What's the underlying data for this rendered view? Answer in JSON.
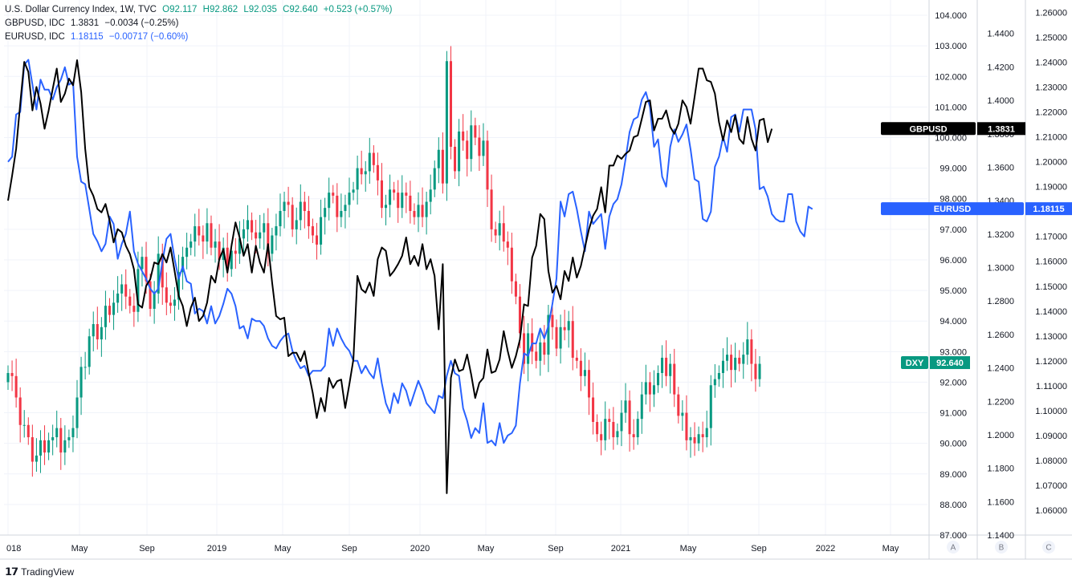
{
  "legend": {
    "dxy": {
      "name": "U.S. Dollar Currency Index, 1W, TVC",
      "o": "O92.117",
      "h": "H92.862",
      "l": "L92.035",
      "c": "C92.640",
      "chg": "+0.523 (+0.57%)"
    },
    "gbp": {
      "name": "GBPUSD, IDC",
      "value": "1.3831",
      "chg": "−0.0034 (−0.25%)"
    },
    "eur": {
      "name": "EURUSD, IDC",
      "value": "1.18115",
      "chg": "−0.00717 (−0.60%)"
    }
  },
  "footer": {
    "brand": "TradingView"
  },
  "colors": {
    "up": "#089981",
    "down": "#f23645",
    "gbp": "#000000",
    "eur": "#2962ff",
    "dxy_tag": "#089981",
    "grid": "#f0f3fa",
    "axis_border": "#d1d4dc"
  },
  "chart_data": {
    "type": "line",
    "x_tick_labels": [
      "018",
      "May",
      "Sep",
      "2019",
      "May",
      "Sep",
      "2020",
      "May",
      "Sep",
      "2021",
      "May",
      "Sep",
      "2022",
      "May"
    ],
    "axis_letters": [
      "A",
      "B",
      "C"
    ],
    "axes": {
      "A": {
        "ylim": [
          87,
          104.5
        ],
        "ticks": [
          87,
          88,
          89,
          90,
          91,
          92,
          93,
          94,
          95,
          96,
          97,
          98,
          99,
          100,
          101,
          102,
          103,
          104
        ],
        "decimals": 3
      },
      "B": {
        "ylim": [
          1.14,
          1.46
        ],
        "ticks": [
          1.14,
          1.16,
          1.18,
          1.2,
          1.22,
          1.24,
          1.26,
          1.28,
          1.3,
          1.32,
          1.34,
          1.36,
          1.38,
          1.4,
          1.42,
          1.44
        ],
        "decimals": 4
      },
      "C": {
        "ylim": [
          1.05,
          1.265
        ],
        "ticks": [
          1.06,
          1.07,
          1.08,
          1.09,
          1.1,
          1.11,
          1.12,
          1.13,
          1.14,
          1.15,
          1.16,
          1.17,
          1.18,
          1.19,
          1.2,
          1.21,
          1.22,
          1.23,
          1.24,
          1.25,
          1.26
        ],
        "decimals": 5
      }
    },
    "series": [
      {
        "name": "DXY",
        "axis": "A",
        "type": "candlestick",
        "close": [
          92.3,
          92.2,
          91.5,
          90.6,
          90.6,
          90.2,
          89.4,
          89.6,
          90.1,
          89.7,
          90.1,
          90.2,
          90.5,
          89.7,
          90.1,
          90.2,
          90.5,
          91.5,
          92.5,
          92.5,
          93.5,
          93.9,
          93.4,
          93.8,
          94.5,
          94.2,
          94.6,
          94.9,
          95.2,
          94.8,
          94.5,
          94.3,
          95.7,
          96.1,
          95.3,
          94.4,
          94.9,
          96.2,
          95.1,
          94.6,
          94.5,
          94.7,
          95.6,
          96.1,
          96.4,
          96.6,
          97.1,
          96.8,
          96.6,
          97.2,
          96.4,
          96.6,
          96.0,
          96.4,
          95.7,
          96.3,
          96.2,
          96.7,
          97.0,
          97.3,
          96.9,
          96.7,
          96.9,
          97.2,
          96.2,
          96.8,
          97.1,
          97.6,
          97.9,
          97.8,
          97.0,
          97.3,
          97.9,
          97.6,
          97.1,
          96.8,
          96.5,
          97.4,
          97.7,
          98.2,
          98.1,
          97.4,
          97.6,
          97.8,
          98.2,
          98.3,
          99.0,
          98.8,
          98.9,
          99.5,
          99.1,
          98.6,
          97.7,
          97.8,
          98.3,
          98.2,
          97.7,
          98.2,
          98.1,
          97.6,
          97.4,
          97.8,
          97.4,
          97.9,
          98.3,
          99.0,
          99.6,
          98.5,
          102.5,
          99.7,
          98.9,
          100.2,
          99.9,
          99.3,
          100.4,
          100.0,
          99.4,
          99.9,
          98.3,
          97.0,
          96.8,
          97.2,
          96.6,
          96.4,
          95.3,
          94.8,
          93.6,
          92.6,
          93.6,
          93.0,
          92.7,
          93.3,
          92.9,
          94.2,
          93.8,
          93.1,
          93.8,
          93.7,
          94.0,
          92.8,
          92.7,
          92.2,
          92.4,
          91.5,
          90.7,
          90.3,
          90.1,
          90.8,
          90.7,
          90.2,
          90.4,
          91.0,
          91.4,
          90.3,
          90.2,
          90.8,
          91.6,
          92.0,
          91.6,
          91.9,
          92.3,
          92.8,
          92.2,
          92.6,
          91.6,
          90.9,
          91.0,
          90.1,
          90.2,
          90.0,
          90.3,
          90.2,
          90.5,
          91.9,
          92.1,
          92.3,
          92.7,
          92.9,
          92.4,
          92.8,
          92.6,
          92.9,
          93.4,
          92.6,
          92.1,
          92.6
        ],
        "open": [
          null
        ]
      },
      {
        "name": "GBPUSD",
        "axis": "B",
        "values": [
          1.34,
          1.355,
          1.371,
          1.398,
          1.423,
          1.417,
          1.394,
          1.408,
          1.398,
          1.383,
          1.394,
          1.407,
          1.419,
          1.399,
          1.404,
          1.413,
          1.409,
          1.424,
          1.405,
          1.371,
          1.348,
          1.343,
          1.335,
          1.333,
          1.338,
          1.328,
          1.315,
          1.323,
          1.321,
          1.313,
          1.308,
          1.299,
          1.278,
          1.276,
          1.289,
          1.293,
          1.303,
          1.302,
          1.308,
          1.303,
          1.312,
          1.298,
          1.283,
          1.277,
          1.265,
          1.276,
          1.282,
          1.268,
          1.271,
          1.279,
          1.295,
          1.291,
          1.305,
          1.311,
          1.297,
          1.313,
          1.327,
          1.318,
          1.307,
          1.314,
          1.297,
          1.313,
          1.303,
          1.297,
          1.314,
          1.291,
          1.271,
          1.269,
          1.27,
          1.247,
          1.249,
          1.249,
          1.244,
          1.25,
          1.237,
          1.225,
          1.21,
          1.222,
          1.214,
          1.234,
          1.228,
          1.232,
          1.233,
          1.216,
          1.23,
          1.245,
          1.295,
          1.287,
          1.285,
          1.291,
          1.283,
          1.305,
          1.312,
          1.31,
          1.295,
          1.298,
          1.302,
          1.307,
          1.318,
          1.302,
          1.307,
          1.301,
          1.314,
          1.299,
          1.305,
          1.295,
          1.263,
          1.302,
          1.165,
          1.234,
          1.245,
          1.238,
          1.239,
          1.248,
          1.236,
          1.222,
          1.231,
          1.234,
          1.251,
          1.237,
          1.238,
          1.245,
          1.262,
          1.25,
          1.24,
          1.247,
          1.257,
          1.278,
          1.277,
          1.306,
          1.313,
          1.332,
          1.329,
          1.298,
          1.285,
          1.289,
          1.281,
          1.298,
          1.292,
          1.306,
          1.294,
          1.301,
          1.312,
          1.323,
          1.331,
          1.335,
          1.348,
          1.333,
          1.361,
          1.361,
          1.367,
          1.365,
          1.368,
          1.37,
          1.378,
          1.379,
          1.389,
          1.399,
          1.4,
          1.382,
          1.389,
          1.389,
          1.394,
          1.384,
          1.38,
          1.386,
          1.4,
          1.396,
          1.386,
          1.402,
          1.419,
          1.419,
          1.412,
          1.411,
          1.404,
          1.387,
          1.376,
          1.388,
          1.381,
          1.391,
          1.377,
          1.374,
          1.39,
          1.377,
          1.37,
          1.388,
          1.389,
          1.375,
          1.383
        ]
      },
      {
        "name": "EURUSD",
        "axis": "C",
        "values": [
          1.2,
          1.202,
          1.219,
          1.22,
          1.239,
          1.241,
          1.231,
          1.221,
          1.233,
          1.229,
          1.229,
          1.225,
          1.23,
          1.233,
          1.238,
          1.231,
          1.232,
          1.202,
          1.192,
          1.191,
          1.181,
          1.171,
          1.168,
          1.164,
          1.167,
          1.178,
          1.175,
          1.161,
          1.167,
          1.171,
          1.18,
          1.164,
          1.159,
          1.156,
          1.153,
          1.149,
          1.147,
          1.149,
          1.16,
          1.169,
          1.171,
          1.161,
          1.153,
          1.158,
          1.152,
          1.151,
          1.139,
          1.141,
          1.14,
          1.135,
          1.142,
          1.135,
          1.138,
          1.143,
          1.149,
          1.147,
          1.142,
          1.133,
          1.134,
          1.129,
          1.137,
          1.136,
          1.136,
          1.134,
          1.129,
          1.126,
          1.125,
          1.128,
          1.13,
          1.131,
          1.124,
          1.12,
          1.117,
          1.118,
          1.114,
          1.116,
          1.116,
          1.116,
          1.118,
          1.133,
          1.126,
          1.133,
          1.129,
          1.126,
          1.124,
          1.12,
          1.12,
          1.115,
          1.118,
          1.115,
          1.113,
          1.121,
          1.111,
          1.103,
          1.099,
          1.107,
          1.103,
          1.111,
          1.108,
          1.102,
          1.107,
          1.112,
          1.108,
          1.103,
          1.101,
          1.099,
          1.106,
          1.105,
          1.114,
          1.12,
          1.115,
          1.114,
          1.101,
          1.096,
          1.089,
          1.093,
          1.091,
          1.103,
          1.087,
          1.088,
          1.086,
          1.095,
          1.087,
          1.09,
          1.091,
          1.094,
          1.111,
          1.123,
          1.122,
          1.127,
          1.127,
          1.133,
          1.129,
          1.134,
          1.143,
          1.153,
          1.184,
          1.178,
          1.187,
          1.188,
          1.181,
          1.172,
          1.164,
          1.18,
          1.175,
          1.177,
          1.179,
          1.165,
          1.178,
          1.183,
          1.185,
          1.191,
          1.201,
          1.212,
          1.217,
          1.218,
          1.225,
          1.228,
          1.222,
          1.206,
          1.209,
          1.194,
          1.19,
          1.206,
          1.213,
          1.208,
          1.211,
          1.215,
          1.205,
          1.193,
          1.192,
          1.177,
          1.176,
          1.18,
          1.198,
          1.202,
          1.21,
          1.204,
          1.218,
          1.219,
          1.212,
          1.221,
          1.221,
          1.221,
          1.213,
          1.189,
          1.19,
          1.186,
          1.179,
          1.177,
          1.176,
          1.176,
          1.187,
          1.187,
          1.176,
          1.172,
          1.17,
          1.182,
          1.181
        ]
      }
    ],
    "price_tags": [
      {
        "label": "GBPUSD",
        "value": "1.3831",
        "axis": "B",
        "at": 1.3831,
        "color": "#000000"
      },
      {
        "label": "EURUSD",
        "value": "1.18115",
        "axis": "C",
        "at": 1.18115,
        "color": "#2962ff"
      },
      {
        "label": "DXY",
        "value": "92.640",
        "axis": "A",
        "at": 92.64,
        "color": "#089981"
      }
    ],
    "grid": true
  }
}
